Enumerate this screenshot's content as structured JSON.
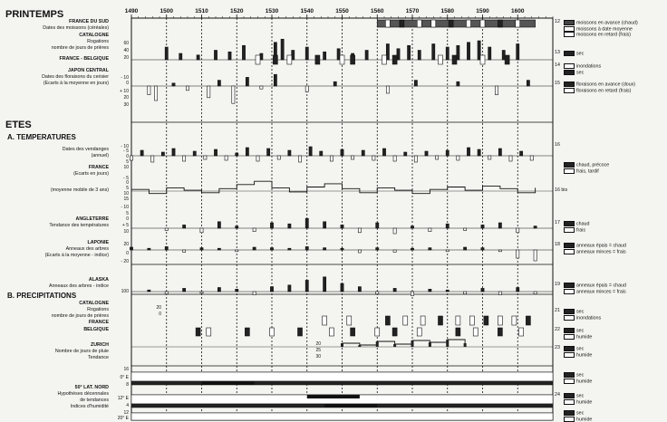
{
  "headings": {
    "printemps": "PRINTEMPS",
    "etes": "ETES",
    "temperatures": "A. TEMPERATURES",
    "precipitations": "B. PRECIPITATIONS"
  },
  "row_labels": {
    "fds_a": "FRANCE DU SUD",
    "fds_b": "Dates des moissons (céréales)",
    "cat_a": "CATALOGNE",
    "cat_b": "Rogations",
    "cat_c": "nombre de jours de prières",
    "fb": "FRANCE - BELGIQUE",
    "jap_a": "JAPON CENTRAL",
    "jap_b": "Dates des floraisons du cerisier",
    "jap_c": "(Ecarts à la moyenne en jours)",
    "vend_a": "Dates des vendanges",
    "vend_b": "(annuel)",
    "fr_a": "FRANCE",
    "fr_b": "(Ecarts en jours)",
    "fr_c": "(moyenne mobile de 3 ans)",
    "ang_a": "ANGLETERRE",
    "ang_b": "Tendance des températures",
    "lap_a": "LAPONIE",
    "lap_b": "Anneaux des arbres",
    "lap_c": "(Ecarts à la moyenne - indice)",
    "ala_a": "ALASKA",
    "ala_b": "Anneaux des arbres - indice",
    "pcat_a": "CATALOGNE",
    "pcat_b": "Rogations",
    "pcat_c": "nombre de jours de prières",
    "pfr": "FRANCE",
    "pbe": "BELGIQUE",
    "zur_a": "ZURICH",
    "zur_b": "Nombre de jours de pluie",
    "zur_c": "Tendance",
    "lat_a": "50° LAT. NORD",
    "lat_b": "Hypothèses décennales",
    "lat_c": "de tendances",
    "lat_d": "Indices d'humidité"
  },
  "tick_labels": {
    "cat_60": "60",
    "cat_40": "40",
    "cat_20": "20",
    "jap_10": "- 10",
    "jap_0": "0",
    "jap_p10": "+ 10",
    "jap_20": "20",
    "jap_30": "30",
    "fr_m10": "- 10",
    "fr_m5": "- 5",
    "fr_0": "0",
    "fr_5": "5",
    "fr_10": "10",
    "fr_m5b": "- 5",
    "fr_0b": "0",
    "fr_5b": "5",
    "fr_10b": "10",
    "fr_15b": "15",
    "ang_m10": "- 10",
    "ang_5": "5",
    "ang_0": "0",
    "ang_p5": "+ 5",
    "ang_10": "10",
    "lap_20": "20",
    "lap_0": "0",
    "lap_m20": "- 20",
    "ala_100": "100",
    "pcat_20": "20",
    "pcat_0": "0",
    "zur_20": "20",
    "zur_25": "25",
    "zur_30": "30",
    "lat_16": "16",
    "lat_0E": "0° E",
    "lat_8": "8",
    "lat_12E": "12° E",
    "lat_4": "4",
    "lat_12": "12",
    "lat_20E": "20° E"
  },
  "legend": {
    "r12": [
      "12",
      "moissons en avance (chaud)",
      "moissons à date moyenne",
      "moissons en retard (frais)"
    ],
    "r13": [
      "13",
      "sec"
    ],
    "r14": [
      "14",
      "inondations",
      "sec"
    ],
    "r15": [
      "15",
      "floraisons en avance (doux)",
      "floraisons en retard (frais)"
    ],
    "r16": [
      "16"
    ],
    "r16b": [
      "",
      "chaud, précoce",
      "frais, tardif"
    ],
    "r16bis": [
      "16 bis"
    ],
    "r17": [
      "17",
      "chaud",
      "frais"
    ],
    "r18": [
      "18",
      "anneaux épais = chaud",
      "anneaux minces = frais"
    ],
    "r19": [
      "19",
      "anneaux épais = chaud",
      "anneaux minces = frais"
    ],
    "r21": [
      "21",
      "sec",
      "inondations"
    ],
    "r22": [
      "22",
      "sec",
      "humide"
    ],
    "r23": [
      "23",
      "sec",
      "humide"
    ],
    "r24": [
      "24",
      "sec",
      "humide"
    ],
    "r25": [
      "",
      "sec",
      "humide"
    ],
    "r26": [
      "",
      "sec",
      "humide"
    ]
  },
  "chart_data": {
    "type": "bar",
    "x_decades": [
      1490,
      1500,
      1510,
      1520,
      1530,
      1540,
      1550,
      1560,
      1570,
      1580,
      1590,
      1600
    ],
    "x_tick_labels": [
      "1490",
      "1500",
      "1510",
      "1520",
      "1530",
      "1540",
      "1550",
      "1560",
      "1570",
      "1580",
      "1590",
      "1600"
    ],
    "xlim": [
      1490,
      1610
    ],
    "series": [
      {
        "id": "cat_rog",
        "kind": "bars",
        "years": [
          1500,
          1504,
          1509,
          1514,
          1518,
          1522,
          1527,
          1531,
          1533,
          1536,
          1540,
          1545,
          1549,
          1553,
          1557,
          1563,
          1566,
          1569,
          1572,
          1576,
          1580,
          1583,
          1586,
          1589,
          1592,
          1596,
          1600
        ],
        "values": [
          40,
          20,
          15,
          30,
          25,
          45,
          20,
          55,
          65,
          30,
          40,
          25,
          35,
          20,
          30,
          50,
          35,
          45,
          30,
          50,
          40,
          45,
          55,
          60,
          40,
          30,
          50
        ]
      },
      {
        "id": "jap_flor",
        "kind": "signed",
        "years": [
          1495,
          1497,
          1502,
          1506,
          1512,
          1515,
          1519,
          1523,
          1527,
          1531,
          1540,
          1548,
          1563,
          1571,
          1583,
          1594,
          1603
        ],
        "values": [
          -6,
          -10,
          2,
          -3,
          -8,
          4,
          -12,
          6,
          -2,
          8,
          -4,
          3,
          -5,
          4,
          3,
          -6,
          4
        ]
      },
      {
        "id": "vendanges",
        "kind": "signed",
        "years": [
          1490,
          1493,
          1496,
          1499,
          1502,
          1505,
          1508,
          1511,
          1514,
          1517,
          1520,
          1523,
          1526,
          1529,
          1532,
          1535,
          1538,
          1541,
          1544,
          1547,
          1550,
          1553,
          1556,
          1559,
          1562,
          1565,
          1568,
          1571,
          1574,
          1577,
          1580,
          1583,
          1586,
          1589,
          1592,
          1595,
          1598,
          1601,
          1604
        ],
        "values": [
          -5,
          6,
          -7,
          4,
          8,
          -6,
          5,
          -4,
          7,
          -5,
          3,
          9,
          -6,
          8,
          -4,
          6,
          -7,
          10,
          5,
          -6,
          7,
          -4,
          6,
          -5,
          8,
          -6,
          4,
          -7,
          5,
          -4,
          6,
          -5,
          9,
          7,
          -4,
          8,
          -6,
          5,
          -5
        ]
      },
      {
        "id": "fr_moy",
        "kind": "line",
        "years": [
          1490,
          1495,
          1500,
          1505,
          1510,
          1515,
          1520,
          1525,
          1530,
          1535,
          1540,
          1545,
          1550,
          1555,
          1560,
          1565,
          1570,
          1575,
          1580,
          1585,
          1590,
          1595,
          1600,
          1605
        ],
        "values": [
          2,
          -3,
          4,
          1,
          -2,
          3,
          8,
          12,
          4,
          -1,
          5,
          9,
          3,
          -2,
          4,
          1,
          -3,
          2,
          5,
          1,
          6,
          3,
          -2,
          4
        ]
      },
      {
        "id": "angleterre",
        "kind": "signed",
        "years": [
          1500,
          1505,
          1510,
          1515,
          1520,
          1525,
          1530,
          1535,
          1540,
          1545,
          1550,
          1555,
          1560,
          1565,
          1570,
          1575,
          1580,
          1585,
          1590,
          1595,
          1600,
          1605
        ],
        "values": [
          -2,
          3,
          -4,
          6,
          2,
          -3,
          5,
          4,
          9,
          6,
          3,
          -4,
          5,
          -5,
          2,
          -3,
          4,
          -2,
          3,
          5,
          -4,
          2
        ]
      },
      {
        "id": "laponie",
        "kind": "signed",
        "years": [
          1490,
          1495,
          1500,
          1505,
          1510,
          1515,
          1520,
          1525,
          1530,
          1535,
          1540,
          1545,
          1550,
          1555,
          1560,
          1565,
          1570,
          1575,
          1580,
          1585,
          1590,
          1595,
          1600,
          1605
        ],
        "values": [
          5,
          3,
          6,
          -4,
          4,
          3,
          -3,
          5,
          4,
          3,
          6,
          4,
          3,
          -5,
          4,
          -4,
          3,
          4,
          -3,
          5,
          4,
          -3,
          -15,
          -20
        ]
      },
      {
        "id": "alaska",
        "kind": "signed",
        "years": [
          1495,
          1500,
          1505,
          1510,
          1515,
          1520,
          1525,
          1530,
          1535,
          1540,
          1545,
          1550,
          1555,
          1560,
          1565,
          1570,
          1575,
          1580,
          1585,
          1590,
          1595,
          1600,
          1605
        ],
        "values": [
          2,
          -3,
          4,
          -2,
          5,
          3,
          -4,
          6,
          8,
          14,
          18,
          10,
          6,
          -3,
          4,
          -5,
          3,
          2,
          -3,
          4,
          -4,
          5,
          -3
        ]
      },
      {
        "id": "zurich",
        "kind": "line",
        "years": [
          1550,
          1555,
          1560,
          1565,
          1570,
          1575,
          1580,
          1585
        ],
        "values": [
          24,
          22,
          26,
          23,
          27,
          25,
          28,
          24
        ]
      }
    ],
    "categorical_rows": [
      {
        "id": "fds_moissons",
        "legend_row": "12"
      },
      {
        "id": "fr_be_printemps",
        "legend_row": "14"
      },
      {
        "id": "pcat_rogations",
        "legend_row": "21"
      },
      {
        "id": "pfr_be",
        "legend_row": "22"
      },
      {
        "id": "lat50_humidity",
        "legend_row": "24"
      }
    ]
  }
}
